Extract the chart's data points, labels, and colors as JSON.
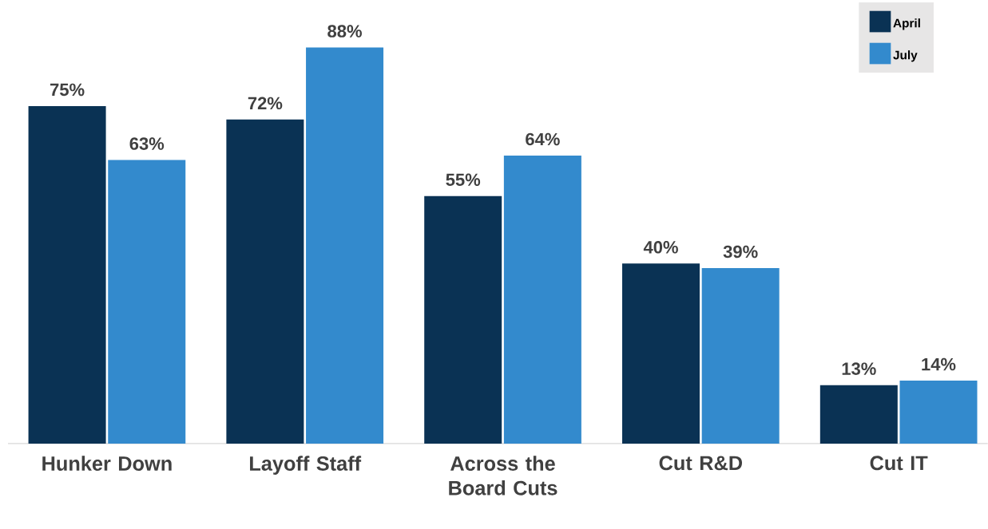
{
  "chart_data": {
    "type": "bar",
    "categories": [
      "Hunker Down",
      "Layoff Staff",
      "Across the Board Cuts",
      "Cut R&D",
      "Cut IT"
    ],
    "series": [
      {
        "name": "April",
        "color": "#0a3254",
        "values": [
          75,
          72,
          55,
          40,
          13
        ],
        "value_labels": [
          "75%",
          "72%",
          "55%",
          "40%",
          "13%"
        ]
      },
      {
        "name": "July",
        "color": "#338acd",
        "values": [
          63,
          88,
          64,
          39,
          14
        ],
        "value_labels": [
          "63%",
          "88%",
          "64%",
          "39%",
          "14%"
        ]
      }
    ],
    "legend": "top right"
  }
}
